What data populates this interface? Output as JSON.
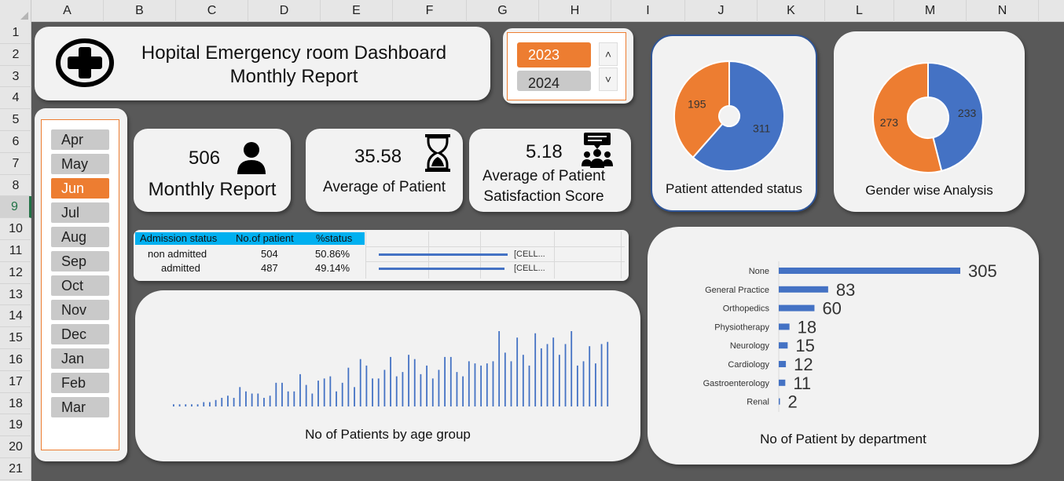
{
  "spreadsheet": {
    "columns": [
      "A",
      "B",
      "C",
      "D",
      "E",
      "F",
      "G",
      "H",
      "I",
      "J",
      "K",
      "L",
      "M",
      "N"
    ],
    "rows": [
      "1",
      "2",
      "3",
      "4",
      "5",
      "6",
      "7",
      "8",
      "9",
      "10",
      "11",
      "12",
      "13",
      "14",
      "15",
      "16",
      "17",
      "18",
      "19",
      "20",
      "21"
    ],
    "active_row": "9"
  },
  "title": {
    "line1": "Hopital Emergency room Dashboard",
    "line2": "Monthly Report",
    "logo_icon": "medical-cross-icon"
  },
  "year_slicer": {
    "options": [
      {
        "label": "2023",
        "selected": true
      },
      {
        "label": "2024",
        "selected": false
      }
    ],
    "scroll_up": "˄",
    "scroll_down": "˅"
  },
  "month_slicer": {
    "options": [
      {
        "label": "Apr",
        "selected": false
      },
      {
        "label": "May",
        "selected": false
      },
      {
        "label": "Jun",
        "selected": true
      },
      {
        "label": "Jul",
        "selected": false
      },
      {
        "label": "Aug",
        "selected": false
      },
      {
        "label": "Sep",
        "selected": false
      },
      {
        "label": "Oct",
        "selected": false
      },
      {
        "label": "Nov",
        "selected": false
      },
      {
        "label": "Dec",
        "selected": false
      },
      {
        "label": "Jan",
        "selected": false
      },
      {
        "label": "Feb",
        "selected": false
      },
      {
        "label": "Mar",
        "selected": false
      }
    ]
  },
  "kpis": {
    "patients": {
      "value": "506",
      "label": "Monthly Report",
      "icon": "person-icon"
    },
    "wait": {
      "value": "35.58",
      "label": "Average of Patient",
      "icon": "hourglass-icon"
    },
    "satisfaction": {
      "value": "5.18",
      "label_line1": "Average of Patient",
      "label_line2": "Satisfaction Score",
      "icon": "feedback-group-icon"
    }
  },
  "admission_table": {
    "headers": [
      "Admission status",
      "No.of patient",
      "%status"
    ],
    "rows": [
      {
        "status": "non admitted",
        "count": "504",
        "pct": "50.86%",
        "ref": "[CELL..."
      },
      {
        "status": "admitted",
        "count": "487",
        "pct": "49.14%",
        "ref": "[CELL..."
      }
    ],
    "header_color": "#00b0f0"
  },
  "colors": {
    "orange": "#ed7d31",
    "blue": "#4472c4",
    "card": "#f2f2f2",
    "background": "#595959"
  },
  "chart_data": [
    {
      "type": "pie",
      "title": "Patient attended status",
      "donut": true,
      "slices": [
        {
          "value": 311,
          "label": "311",
          "color": "#4472c4"
        },
        {
          "value": 195,
          "label": "195",
          "color": "#ed7d31"
        }
      ]
    },
    {
      "type": "pie",
      "title": "Gender wise Analysis",
      "donut": true,
      "slices": [
        {
          "value": 233,
          "label": "233",
          "color": "#4472c4"
        },
        {
          "value": 273,
          "label": "273",
          "color": "#ed7d31"
        }
      ]
    },
    {
      "type": "bar",
      "orientation": "vertical",
      "title": "No of Patients by age group",
      "grid": false,
      "values": [
        1,
        1,
        1,
        1,
        1,
        2,
        2,
        3,
        4,
        5,
        4,
        9,
        7,
        6,
        6,
        4,
        5,
        11,
        11,
        7,
        7,
        15,
        10,
        6,
        12,
        13,
        14,
        7,
        11,
        18,
        9,
        22,
        19,
        13,
        13,
        17,
        23,
        14,
        16,
        24,
        22,
        15,
        19,
        13,
        17,
        23,
        23,
        16,
        14,
        21,
        20,
        19,
        20,
        21,
        35,
        25,
        21,
        32,
        24,
        19,
        34,
        27,
        29,
        32,
        24,
        29,
        35,
        19,
        21,
        28,
        20,
        29,
        30
      ],
      "color": "#4472c4"
    },
    {
      "type": "bar",
      "orientation": "horizontal",
      "title": "No of Patient by department",
      "categories": [
        "None",
        "General Practice",
        "Orthopedics",
        "Physiotherapy",
        "Neurology",
        "Cardiology",
        "Gastroenterology",
        "Renal"
      ],
      "values": [
        305,
        83,
        60,
        18,
        15,
        12,
        11,
        2
      ],
      "color": "#4472c4",
      "data_labels": true
    }
  ]
}
